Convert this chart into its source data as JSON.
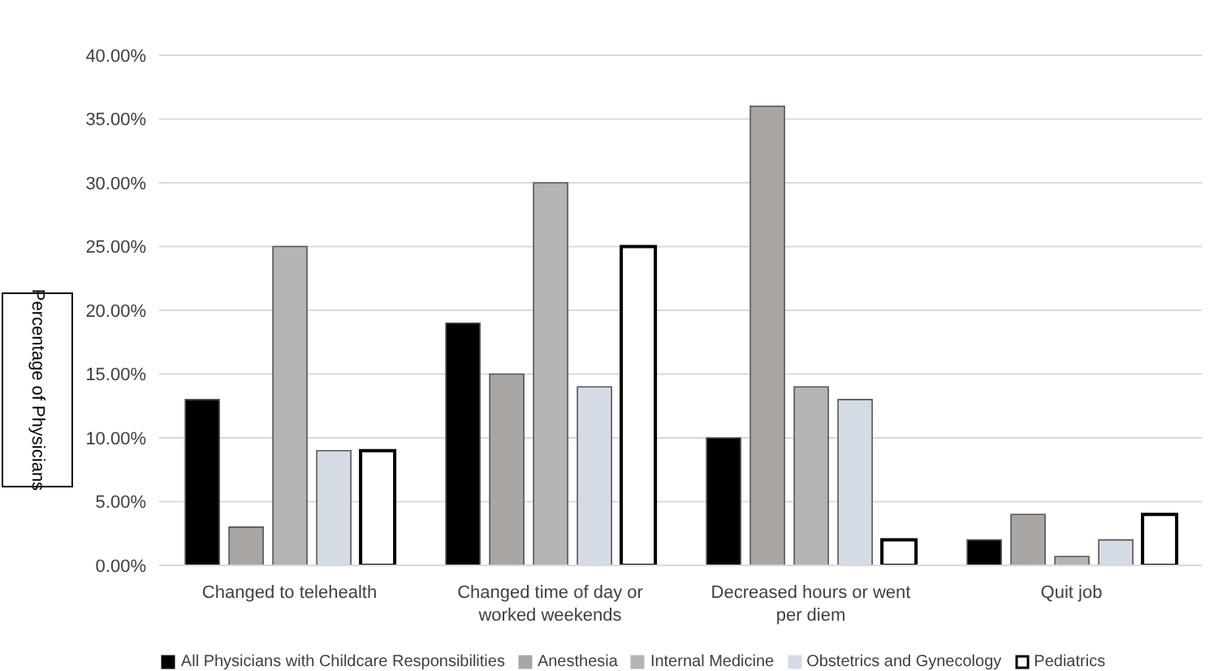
{
  "chart_data": {
    "type": "bar",
    "ylabel": "Percentage of Physicians",
    "categories": [
      "Changed to telehealth",
      "Changed time of day or worked weekends",
      "Decreased hours or went per diem",
      "Quit job"
    ],
    "series": [
      {
        "name": "All Physicians with Childcare Responsibilities",
        "color": "#000000",
        "values": [
          13,
          19,
          10,
          2
        ]
      },
      {
        "name": "Anesthesia",
        "color": "#aaa6a4",
        "values": [
          3,
          15,
          36,
          4
        ]
      },
      {
        "name": "Internal Medicine",
        "color": "#b4b4b4",
        "values": [
          25,
          30,
          14,
          0.7
        ]
      },
      {
        "name": "Obstetrics and Gynecology",
        "color": "#d5dbe4",
        "values": [
          9,
          14,
          13,
          2
        ]
      },
      {
        "name": "Pediatrics",
        "color": "#ffffff",
        "values": [
          9,
          25,
          2,
          4
        ]
      }
    ],
    "ylim": [
      0,
      40
    ],
    "yticks": [
      {
        "value": 0,
        "label": "0.00%"
      },
      {
        "value": 5,
        "label": "5.00%"
      },
      {
        "value": 10,
        "label": "10.00%"
      },
      {
        "value": 15,
        "label": "15.00%"
      },
      {
        "value": 20,
        "label": "20.00%"
      },
      {
        "value": 25,
        "label": "25.00%"
      },
      {
        "value": 30,
        "label": "30.00%"
      },
      {
        "value": 35,
        "label": "35.00%"
      },
      {
        "value": 40,
        "label": "40.00%"
      }
    ],
    "grid": "y",
    "legend": "bottom"
  }
}
